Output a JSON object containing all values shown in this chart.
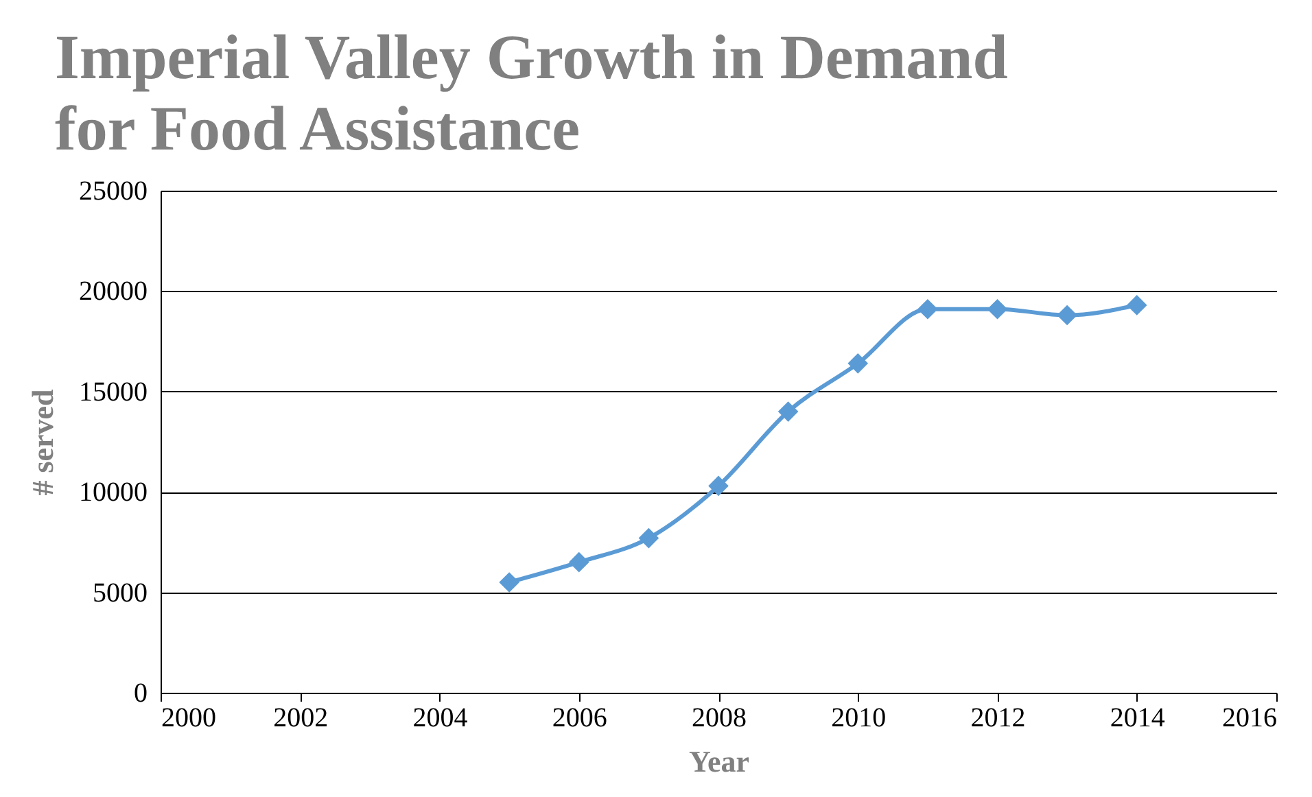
{
  "chart_data": {
    "type": "line",
    "title": "Imperial Valley Growth in Demand for Food Assistance",
    "xlabel": "Year",
    "ylabel": "# served",
    "x": [
      2005,
      2006,
      2007,
      2008,
      2009,
      2010,
      2011,
      2012,
      2013,
      2014
    ],
    "series": [
      {
        "color": "#5b9bd5",
        "values": [
          5500,
          6500,
          7700,
          10300,
          14000,
          16400,
          19100,
          19100,
          18800,
          19300
        ]
      }
    ],
    "xlim": [
      2000,
      2016
    ],
    "xticks": [
      2000,
      2002,
      2004,
      2006,
      2008,
      2010,
      2012,
      2014,
      2016
    ],
    "ylim": [
      0,
      25000
    ],
    "yticks": [
      0,
      5000,
      10000,
      15000,
      20000,
      25000
    ],
    "grid": "y",
    "marker": "diamond",
    "line_style": "solid"
  }
}
